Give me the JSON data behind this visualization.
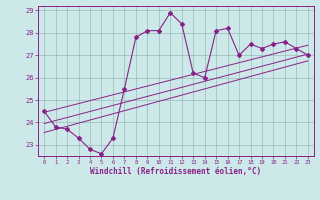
{
  "title": "",
  "xlabel": "Windchill (Refroidissement éolien,°C)",
  "bg_color": "#cce8e8",
  "line_color": "#882288",
  "grid_color": "#99bbbb",
  "x_values": [
    0,
    1,
    2,
    3,
    4,
    5,
    6,
    7,
    8,
    9,
    10,
    11,
    12,
    13,
    14,
    15,
    16,
    17,
    18,
    19,
    20,
    21,
    22,
    23
  ],
  "y_values": [
    24.5,
    23.8,
    23.7,
    23.3,
    22.8,
    22.6,
    23.3,
    25.5,
    27.8,
    28.1,
    28.1,
    28.9,
    28.4,
    26.2,
    26.0,
    28.1,
    28.2,
    27.0,
    27.5,
    27.3,
    27.5,
    27.6,
    27.3,
    27.0
  ],
  "ylim": [
    22.5,
    29.2
  ],
  "xlim": [
    -0.5,
    23.5
  ],
  "yticks": [
    23,
    24,
    25,
    26,
    27,
    28,
    29
  ],
  "xticks": [
    0,
    1,
    2,
    3,
    4,
    5,
    6,
    7,
    8,
    9,
    10,
    11,
    12,
    13,
    14,
    15,
    16,
    17,
    18,
    19,
    20,
    21,
    22,
    23
  ],
  "trend_lines": [
    {
      "x0": 0,
      "y0": 23.55,
      "x1": 23,
      "y1": 26.75
    },
    {
      "x0": 0,
      "y0": 23.95,
      "x1": 23,
      "y1": 27.05
    },
    {
      "x0": 0,
      "y0": 24.45,
      "x1": 23,
      "y1": 27.45
    }
  ]
}
